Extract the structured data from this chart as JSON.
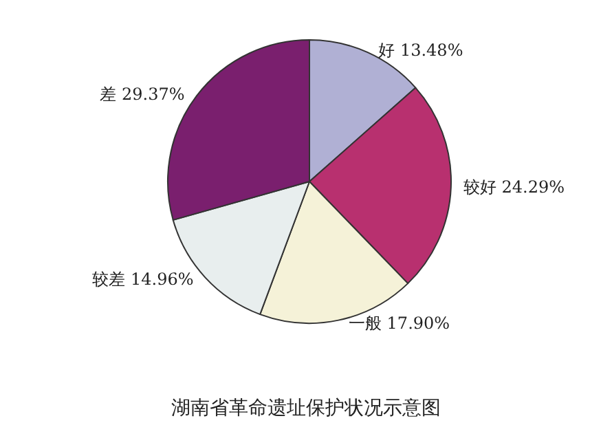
{
  "chart_data": {
    "type": "pie",
    "title": "湖南省革命遗址保护状况示意图",
    "categories": [
      "好",
      "较好",
      "一般",
      "较差",
      "差"
    ],
    "values": [
      13.48,
      24.29,
      17.9,
      14.96,
      29.37
    ],
    "value_labels": [
      "13.48%",
      "24.29%",
      "17.90%",
      "14.96%",
      "29.37%"
    ],
    "colors": [
      "#b0b0d4",
      "#b8306f",
      "#f5f2d8",
      "#e8eeee",
      "#7a1f6e"
    ],
    "legend": false
  }
}
